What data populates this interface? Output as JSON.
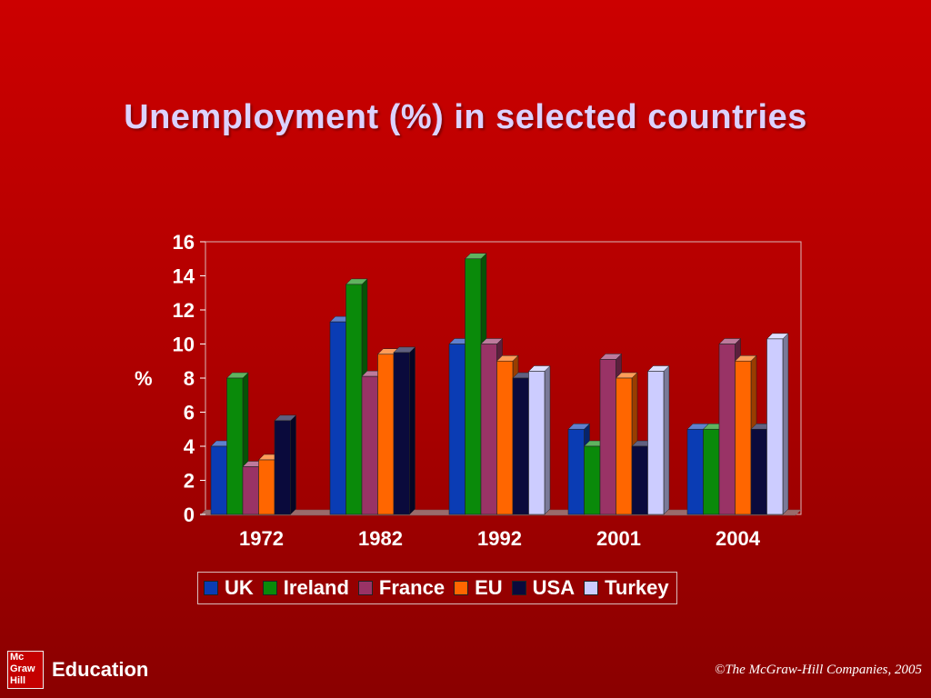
{
  "slide": {
    "title": "Unemployment (%) in selected countries",
    "logo_lines": [
      "Mc",
      "Graw",
      "Hill"
    ],
    "brand": "Education",
    "copyright": "©The McGraw-Hill Companies, 2005"
  },
  "colors": {
    "UK": "#0a3cb4",
    "Ireland": "#0a8a0a",
    "France": "#993366",
    "EU": "#ff6600",
    "USA": "#0a0a3c",
    "Turkey": "#ccccff"
  },
  "chart_data": {
    "type": "bar",
    "title": "",
    "xlabel": "",
    "ylabel": "%",
    "ylim": [
      0,
      16
    ],
    "yticks": [
      "0",
      "2",
      "4",
      "6",
      "8",
      "10",
      "12",
      "14",
      "16"
    ],
    "categories": [
      "1972",
      "1982",
      "1992",
      "2001",
      "2004"
    ],
    "legend_position": "bottom",
    "grid": false,
    "series": [
      {
        "name": "UK",
        "values": [
          4,
          11.3,
          10,
          5,
          5
        ]
      },
      {
        "name": "Ireland",
        "values": [
          8,
          13.5,
          15,
          4,
          5
        ]
      },
      {
        "name": "France",
        "values": [
          2.8,
          8.1,
          10,
          9.1,
          10
        ]
      },
      {
        "name": "EU",
        "values": [
          3.2,
          9.4,
          9,
          8,
          9
        ]
      },
      {
        "name": "USA",
        "values": [
          5.5,
          9.5,
          8,
          4,
          5
        ]
      },
      {
        "name": "Turkey",
        "values": [
          null,
          null,
          8.4,
          8.4,
          10.3
        ]
      }
    ]
  }
}
